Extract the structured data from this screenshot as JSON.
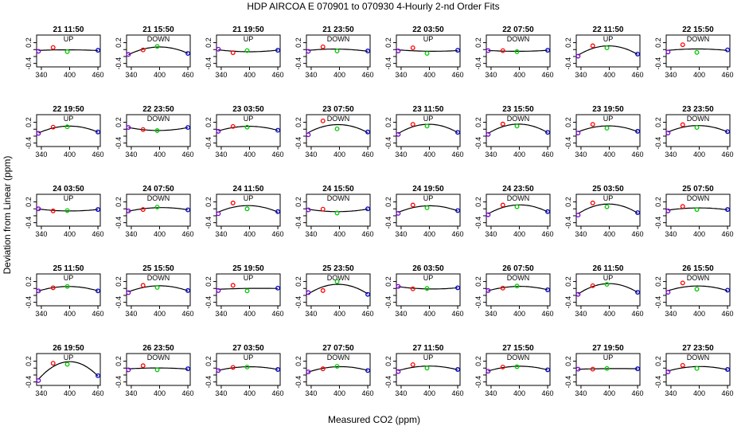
{
  "chart_data": {
    "type": "scatter",
    "title": "HDP    AIRCOA E    070901 to 070930   4-Hourly 2-nd Order Fits",
    "xlabel": "Measured CO2 (ppm)",
    "ylabel": "Deviation from Linear (ppm)",
    "xlim": [
      330,
      465
    ],
    "ylim": [
      -0.5,
      0.42
    ],
    "xticks": [
      340,
      400,
      460
    ],
    "yticks": [
      -0.4,
      -0.2,
      0.0,
      0.2
    ],
    "ytick_labels": [
      "-0.4",
      "",
      "",
      "0.2"
    ],
    "standard_x": [
      334,
      365,
      395,
      460
    ],
    "marker_colors": [
      "#7b00d8",
      "#ff0000",
      "#00cc00",
      "#0000cc"
    ],
    "fit_color": "#000000",
    "grid": false,
    "panels": [
      {
        "title": "21 11:50",
        "mode": "UP",
        "dev": [
          -0.05,
          0.06,
          -0.06,
          -0.02
        ]
      },
      {
        "title": "21 15:50",
        "mode": "DOWN",
        "dev": [
          -0.14,
          -0.01,
          0.09,
          -0.11
        ]
      },
      {
        "title": "21 19:50",
        "mode": "UP",
        "dev": [
          0.01,
          -0.09,
          -0.03,
          -0.02
        ]
      },
      {
        "title": "21 23:50",
        "mode": "DOWN",
        "dev": [
          -0.05,
          0.08,
          -0.04,
          -0.04
        ]
      },
      {
        "title": "22 03:50",
        "mode": "UP",
        "dev": [
          -0.04,
          0.05,
          -0.11,
          -0.02
        ]
      },
      {
        "title": "22 07:50",
        "mode": "DOWN",
        "dev": [
          -0.03,
          -0.03,
          -0.06,
          -0.02
        ]
      },
      {
        "title": "22 11:50",
        "mode": "UP",
        "dev": [
          -0.19,
          0.11,
          0.05,
          -0.13
        ]
      },
      {
        "title": "22 15:50",
        "mode": "DOWN",
        "dev": [
          -0.07,
          0.14,
          -0.08,
          -0.01
        ]
      },
      {
        "title": "22 19:50",
        "mode": "UP",
        "dev": [
          -0.12,
          0.06,
          0.07,
          -0.08
        ]
      },
      {
        "title": "22 23:50",
        "mode": "DOWN",
        "dev": [
          0.05,
          -0.01,
          -0.04,
          0.05
        ]
      },
      {
        "title": "23 03:50",
        "mode": "UP",
        "dev": [
          -0.06,
          0.08,
          0.06,
          -0.03
        ]
      },
      {
        "title": "23 07:50",
        "mode": "DOWN",
        "dev": [
          -0.16,
          0.24,
          0.01,
          -0.08
        ]
      },
      {
        "title": "23 11:50",
        "mode": "UP",
        "dev": [
          -0.15,
          0.14,
          0.09,
          -0.09
        ]
      },
      {
        "title": "23 15:50",
        "mode": "DOWN",
        "dev": [
          -0.15,
          0.15,
          0.09,
          -0.09
        ]
      },
      {
        "title": "23 19:50",
        "mode": "UP",
        "dev": [
          -0.11,
          0.14,
          0.03,
          -0.06
        ]
      },
      {
        "title": "23 23:50",
        "mode": "DOWN",
        "dev": [
          -0.11,
          0.13,
          0.05,
          -0.07
        ]
      },
      {
        "title": "24 03:50",
        "mode": "UP",
        "dev": [
          0.0,
          -0.06,
          -0.05,
          -0.02
        ]
      },
      {
        "title": "24 07:50",
        "mode": "DOWN",
        "dev": [
          -0.06,
          -0.02,
          0.05,
          -0.03
        ]
      },
      {
        "title": "24 11:50",
        "mode": "UP",
        "dev": [
          -0.14,
          0.17,
          0.0,
          -0.08
        ]
      },
      {
        "title": "24 15:50",
        "mode": "DOWN",
        "dev": [
          -0.03,
          -0.01,
          -0.12,
          0.0
        ]
      },
      {
        "title": "24 19:50",
        "mode": "UP",
        "dev": [
          -0.13,
          0.11,
          0.03,
          -0.05
        ]
      },
      {
        "title": "24 23:50",
        "mode": "DOWN",
        "dev": [
          -0.17,
          0.11,
          0.06,
          -0.08
        ]
      },
      {
        "title": "25 03:50",
        "mode": "UP",
        "dev": [
          -0.18,
          0.17,
          0.06,
          -0.11
        ]
      },
      {
        "title": "25 07:50",
        "mode": "DOWN",
        "dev": [
          -0.06,
          0.07,
          -0.02,
          -0.02
        ]
      },
      {
        "title": "25 11:50",
        "mode": "UP",
        "dev": [
          -0.07,
          0.02,
          0.06,
          -0.07
        ]
      },
      {
        "title": "25 15:50",
        "mode": "DOWN",
        "dev": [
          -0.12,
          0.09,
          0.03,
          -0.06
        ]
      },
      {
        "title": "25 19:50",
        "mode": "UP",
        "dev": [
          -0.06,
          0.09,
          -0.07,
          0.01
        ]
      },
      {
        "title": "25 23:50",
        "mode": "DOWN",
        "dev": [
          -0.12,
          -0.06,
          0.2,
          -0.17
        ]
      },
      {
        "title": "26 03:50",
        "mode": "UP",
        "dev": [
          0.06,
          -0.01,
          0.0,
          0.02
        ]
      },
      {
        "title": "26 07:50",
        "mode": "DOWN",
        "dev": [
          -0.06,
          0.01,
          0.07,
          -0.04
        ]
      },
      {
        "title": "26 11:50",
        "mode": "UP",
        "dev": [
          -0.17,
          0.08,
          0.12,
          -0.11
        ]
      },
      {
        "title": "26 15:50",
        "mode": "DOWN",
        "dev": [
          -0.11,
          0.16,
          -0.02,
          -0.05
        ]
      },
      {
        "title": "26 19:50",
        "mode": "UP",
        "dev": [
          -0.36,
          0.14,
          0.11,
          -0.22
        ]
      },
      {
        "title": "26 23:50",
        "mode": "DOWN",
        "dev": [
          -0.05,
          0.07,
          -0.05,
          -0.02
        ]
      },
      {
        "title": "27 03:50",
        "mode": "UP",
        "dev": [
          -0.07,
          0.02,
          0.03,
          -0.04
        ]
      },
      {
        "title": "27 07:50",
        "mode": "DOWN",
        "dev": [
          -0.11,
          -0.02,
          0.05,
          -0.07
        ]
      },
      {
        "title": "27 11:50",
        "mode": "UP",
        "dev": [
          -0.1,
          0.1,
          0.0,
          -0.04
        ]
      },
      {
        "title": "27 15:50",
        "mode": "DOWN",
        "dev": [
          -0.09,
          0.03,
          0.04,
          -0.05
        ]
      },
      {
        "title": "27 19:50",
        "mode": "UP",
        "dev": [
          -0.03,
          -0.03,
          -0.01,
          -0.02
        ]
      },
      {
        "title": "27 23:50",
        "mode": "DOWN",
        "dev": [
          -0.11,
          0.08,
          -0.01,
          -0.04
        ]
      }
    ]
  }
}
